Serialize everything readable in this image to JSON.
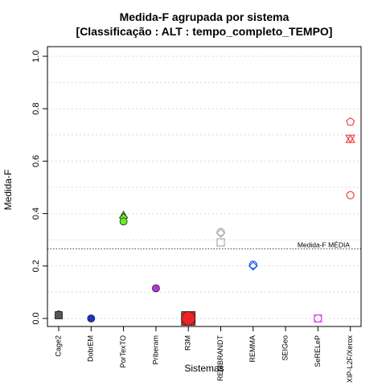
{
  "chart_data": {
    "type": "scatter",
    "title": "Medida-F agrupada por sistema",
    "subtitle": "[Classificação : ALT : tempo_completo_TEMPO]",
    "xlabel": "Sistemas",
    "ylabel": "Medida-F",
    "ylim": [
      0,
      1.0
    ],
    "yticks": [
      "0.0",
      "0.2",
      "0.4",
      "0.6",
      "0.8",
      "1.0"
    ],
    "grid": "horizontal-dotted",
    "categories": [
      "Cage2",
      "DobrEM",
      "PorTexTO",
      "Priberam",
      "R3M",
      "REMBRANDT",
      "REMMA",
      "SEIGeo",
      "SeRELeP",
      "XIP-L2F/Xerox"
    ],
    "reference_line": {
      "label": "Medida-F MÉDIA",
      "value": 0.265
    },
    "series": [
      {
        "category": "Cage2",
        "color": "#555555",
        "points": [
          {
            "y": 0.015,
            "shape": "triangle",
            "fill": true
          },
          {
            "y": 0.015,
            "shape": "circle",
            "fill": true
          },
          {
            "y": 0.012,
            "shape": "square",
            "fill": true
          }
        ]
      },
      {
        "category": "DobrEM",
        "color": "#1a33cc",
        "points": [
          {
            "y": 0.0,
            "shape": "circle",
            "fill": true
          }
        ]
      },
      {
        "category": "PorTexTO",
        "color": "#66ee22",
        "points": [
          {
            "y": 0.395,
            "shape": "triangle",
            "fill": true
          },
          {
            "y": 0.385,
            "shape": "diamond",
            "fill": true
          },
          {
            "y": 0.37,
            "shape": "circle",
            "fill": true
          }
        ]
      },
      {
        "category": "Priberam",
        "color": "#bb33dd",
        "points": [
          {
            "y": 0.115,
            "shape": "circle",
            "fill": true
          }
        ]
      },
      {
        "category": "R3M",
        "color": "#ee2222",
        "points": [
          {
            "y": 0.0,
            "shape": "square",
            "fill": true,
            "size": "large"
          },
          {
            "y": 0.0,
            "shape": "circle",
            "fill": true,
            "size": "large"
          }
        ]
      },
      {
        "category": "REMBRANDT",
        "color": "#aaaaaa",
        "points": [
          {
            "y": 0.33,
            "shape": "circle",
            "fill": false
          },
          {
            "y": 0.325,
            "shape": "diamond",
            "fill": false
          },
          {
            "y": 0.29,
            "shape": "square",
            "fill": false
          }
        ]
      },
      {
        "category": "REMMA",
        "color": "#2255ee",
        "points": [
          {
            "y": 0.205,
            "shape": "circle",
            "fill": false
          },
          {
            "y": 0.2,
            "shape": "diamond",
            "fill": false
          }
        ]
      },
      {
        "category": "SEIGeo",
        "color": "#000000",
        "points": []
      },
      {
        "category": "SeRELeP",
        "color": "#dd55ee",
        "points": [
          {
            "y": 0.0,
            "shape": "circle",
            "fill": false
          },
          {
            "y": 0.0,
            "shape": "square",
            "fill": false
          }
        ]
      },
      {
        "category": "XIP-L2F/Xerox",
        "color": "#ee4444",
        "points": [
          {
            "y": 0.75,
            "shape": "pentagon",
            "fill": false
          },
          {
            "y": 0.685,
            "shape": "star",
            "fill": false
          },
          {
            "y": 0.47,
            "shape": "circle",
            "fill": false
          }
        ]
      }
    ]
  }
}
